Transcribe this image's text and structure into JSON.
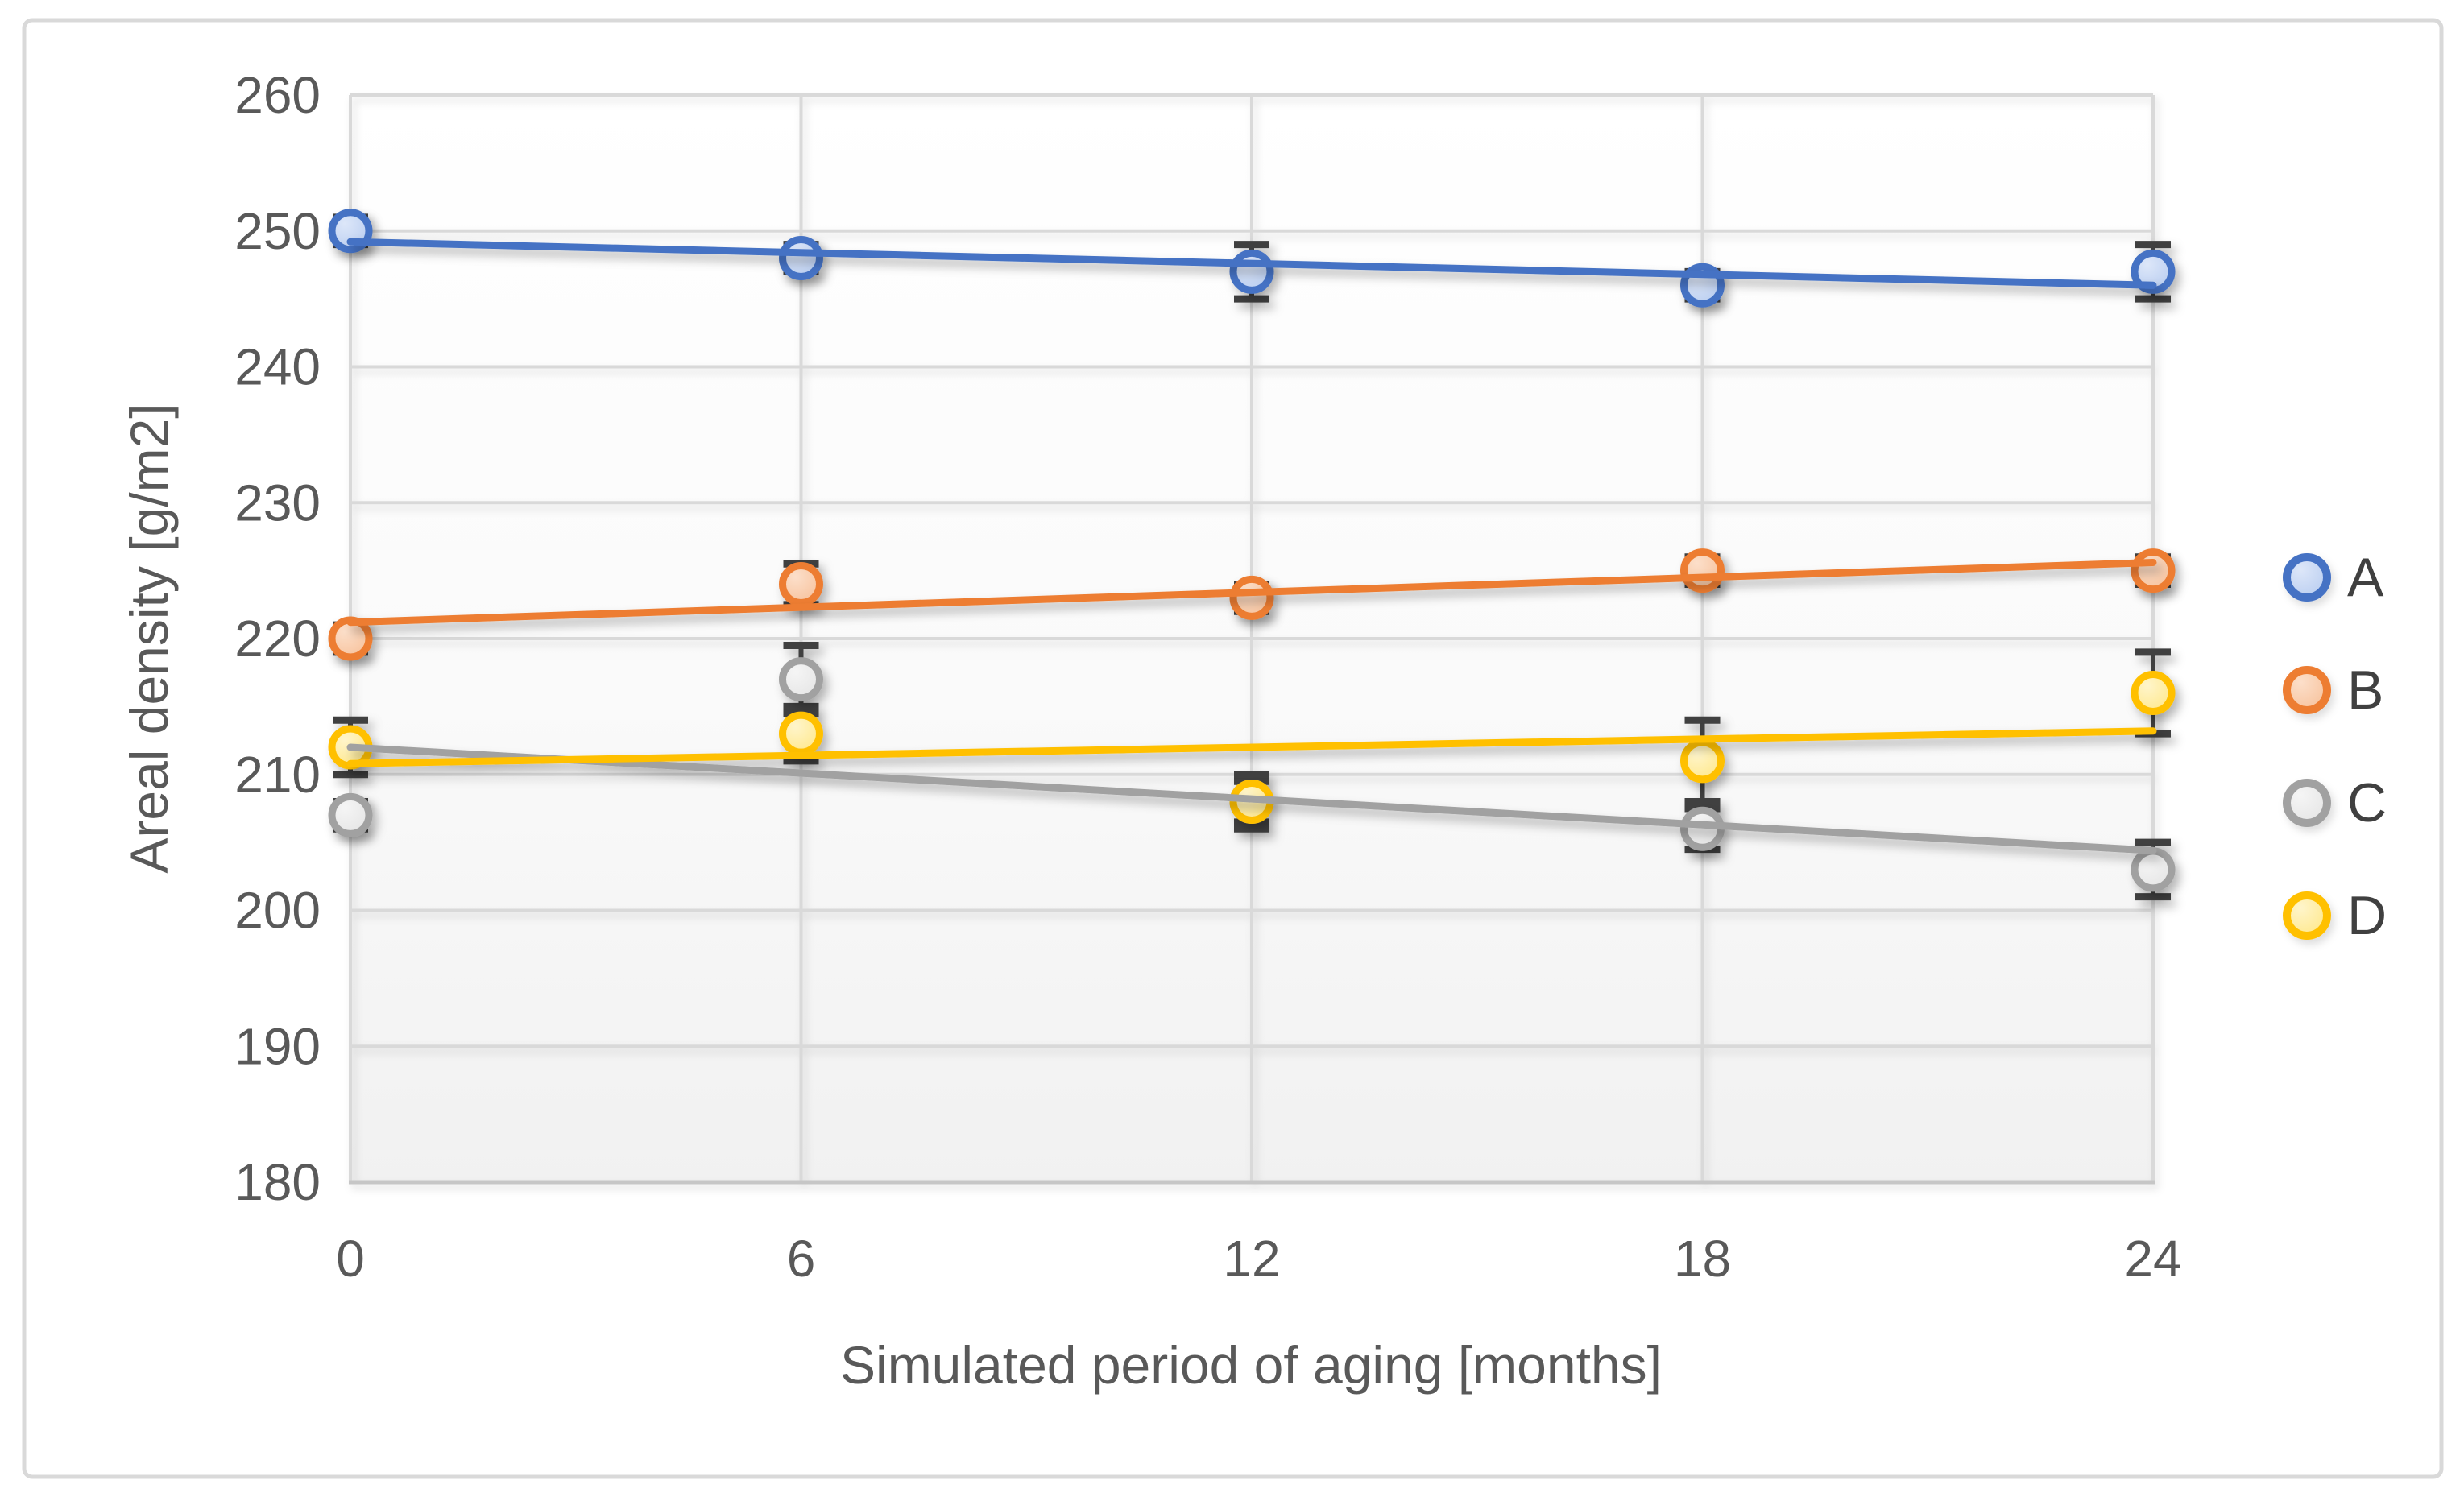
{
  "window": {
    "background": "#ffffff",
    "frame_color": "#d9d9d9"
  },
  "chart_data": {
    "type": "scatter",
    "title": "",
    "xlabel": "Simulated period of aging [months]",
    "ylabel": "Areal density [g/m2]",
    "xlim": [
      0,
      24
    ],
    "ylim": [
      180,
      260
    ],
    "xticks": [
      0,
      6,
      12,
      18,
      24
    ],
    "ytick_step": 10,
    "grid": true,
    "legend_position": "right",
    "x": [
      0,
      6,
      12,
      18,
      24
    ],
    "series": [
      {
        "name": "A",
        "stroke": "#4472c4",
        "fill": "#b9cdf0",
        "fill_light": "#dde7f9",
        "values": [
          250,
          248,
          247,
          246,
          247
        ],
        "errors": [
          1,
          1,
          2,
          1,
          2
        ],
        "trendline": "linear"
      },
      {
        "name": "B",
        "stroke": "#ed7d31",
        "fill": "#f7c29c",
        "fill_light": "#fcdfca",
        "values": [
          220,
          224,
          223,
          225,
          225
        ],
        "errors": [
          1,
          1.5,
          1,
          1,
          1
        ],
        "trendline": "linear"
      },
      {
        "name": "C",
        "stroke": "#a1a1a1",
        "fill": "#e5e5e5",
        "fill_light": "#f5f5f5",
        "values": [
          207,
          217,
          208,
          206,
          203
        ],
        "errors": [
          1,
          2.5,
          1.5,
          1.5,
          2
        ],
        "trendline": "linear"
      },
      {
        "name": "D",
        "stroke": "#ffc000",
        "fill": "#ffe88b",
        "fill_light": "#fff5cb",
        "values": [
          212,
          213,
          208,
          211,
          216
        ],
        "errors": [
          2,
          2,
          2,
          3,
          3
        ],
        "trendline": "linear"
      }
    ],
    "style": {
      "error_bar_color": "#3f3f3f",
      "gridline_color": "#d9d9d9",
      "axis_line_color": "#c6c6c6",
      "tick_label_color": "#595959",
      "axis_title_color": "#595959",
      "legend_text_color": "#404040",
      "plot_bg_top": "#ffffff",
      "plot_bg_bottom": "#f1f1f1"
    }
  }
}
